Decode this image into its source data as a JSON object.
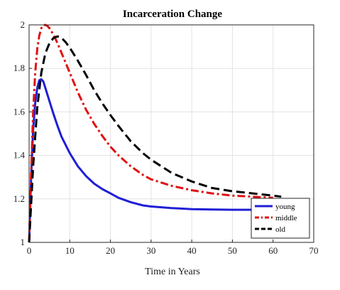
{
  "chart_data": {
    "type": "line",
    "title": "Incarceration Change",
    "xlabel": "Time in Years",
    "ylabel": "",
    "xlim": [
      0,
      70
    ],
    "ylim": [
      1,
      2
    ],
    "xticks": [
      0,
      10,
      20,
      30,
      40,
      50,
      60,
      70
    ],
    "yticks": [
      1,
      1.2,
      1.4,
      1.6,
      1.8,
      2
    ],
    "grid": true,
    "legend_position": "bottom-right",
    "series": [
      {
        "name": "young",
        "color": "#1f1fd6",
        "style": "solid",
        "x": [
          0,
          0.5,
          1,
          1.5,
          2,
          2.5,
          3,
          3.5,
          4,
          5,
          6,
          7,
          8,
          10,
          12,
          14,
          16,
          18,
          20,
          22,
          25,
          28,
          30,
          35,
          40,
          45,
          50,
          55
        ],
        "y": [
          1.0,
          1.3,
          1.52,
          1.64,
          1.71,
          1.745,
          1.75,
          1.74,
          1.71,
          1.65,
          1.59,
          1.535,
          1.485,
          1.41,
          1.35,
          1.305,
          1.27,
          1.245,
          1.225,
          1.205,
          1.185,
          1.17,
          1.165,
          1.158,
          1.153,
          1.151,
          1.15,
          1.15
        ]
      },
      {
        "name": "middle",
        "color": "#e01010",
        "style": "dashdot",
        "x": [
          0,
          0.5,
          1,
          1.5,
          2,
          2.5,
          3,
          3.5,
          4,
          4.5,
          5,
          6,
          7,
          8,
          9,
          10,
          12,
          14,
          16,
          18,
          20,
          22,
          25,
          28,
          30,
          35,
          40,
          45,
          50,
          55,
          60
        ],
        "y": [
          1.0,
          1.32,
          1.6,
          1.78,
          1.89,
          1.95,
          1.985,
          1.998,
          2.0,
          1.995,
          1.985,
          1.955,
          1.915,
          1.87,
          1.825,
          1.78,
          1.69,
          1.61,
          1.545,
          1.49,
          1.44,
          1.4,
          1.35,
          1.31,
          1.29,
          1.26,
          1.24,
          1.225,
          1.215,
          1.21,
          1.205
        ]
      },
      {
        "name": "old",
        "color": "#000000",
        "style": "dashed",
        "x": [
          0,
          1,
          2,
          3,
          4,
          5,
          6,
          7,
          8,
          9,
          10,
          12,
          14,
          16,
          18,
          20,
          22,
          25,
          28,
          30,
          35,
          40,
          45,
          50,
          55,
          60,
          62
        ],
        "y": [
          1.0,
          1.35,
          1.62,
          1.78,
          1.87,
          1.915,
          1.94,
          1.947,
          1.94,
          1.92,
          1.895,
          1.835,
          1.77,
          1.7,
          1.64,
          1.585,
          1.535,
          1.465,
          1.41,
          1.38,
          1.32,
          1.28,
          1.25,
          1.235,
          1.225,
          1.215,
          1.21
        ]
      }
    ]
  }
}
